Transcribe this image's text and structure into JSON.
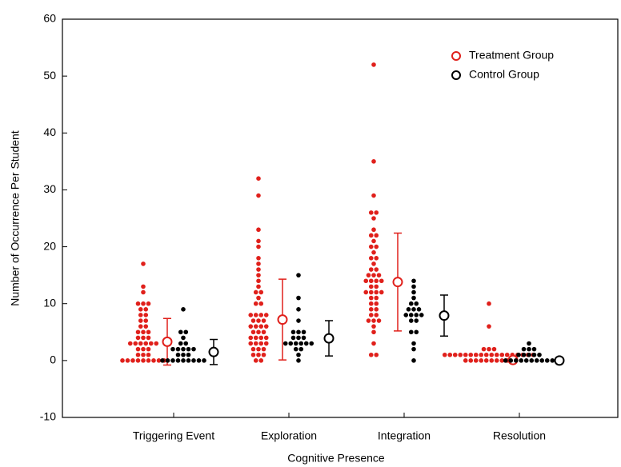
{
  "chart_data": {
    "type": "dot",
    "xlabel": "Cognitive Presence",
    "ylabel": "Number of Occurrence Per Student",
    "categories": [
      "Triggering Event",
      "Exploration",
      "Integration",
      "Resolution"
    ],
    "ylim": [
      -10,
      60
    ],
    "yticks": [
      -10,
      0,
      10,
      20,
      30,
      40,
      50,
      60
    ],
    "legend": "upper right",
    "series": [
      {
        "name": "Treatment Group",
        "color": "#e0201b",
        "means": [
          3.3,
          7.2,
          13.8,
          0.1
        ],
        "errors": [
          4.1,
          7.1,
          8.6,
          0.3
        ],
        "points": [
          [
            0,
            0,
            0,
            0,
            0,
            0,
            0,
            0,
            0,
            1,
            1,
            1,
            2,
            2,
            2,
            3,
            3,
            3,
            3,
            3,
            3,
            4,
            4,
            4,
            5,
            5,
            5,
            6,
            6,
            7,
            7,
            8,
            8,
            9,
            9,
            10,
            10,
            10,
            12,
            13,
            17
          ],
          [
            0,
            0,
            1,
            1,
            1,
            2,
            2,
            2,
            3,
            3,
            3,
            3,
            4,
            4,
            4,
            4,
            5,
            5,
            5,
            6,
            6,
            6,
            6,
            7,
            7,
            7,
            8,
            8,
            8,
            8,
            10,
            10,
            11,
            12,
            12,
            13,
            14,
            15,
            16,
            17,
            18,
            20,
            21,
            23,
            29,
            32
          ],
          [
            1,
            1,
            3,
            5,
            6,
            7,
            7,
            7,
            8,
            8,
            9,
            9,
            10,
            10,
            11,
            11,
            12,
            12,
            12,
            12,
            13,
            13,
            14,
            14,
            14,
            14,
            15,
            15,
            15,
            16,
            16,
            17,
            18,
            18,
            19,
            20,
            20,
            21,
            22,
            22,
            23,
            25,
            26,
            26,
            29,
            35,
            52
          ],
          [
            0,
            0,
            0,
            0,
            0,
            0,
            0,
            0,
            0,
            0,
            1,
            1,
            1,
            1,
            1,
            1,
            1,
            1,
            1,
            1,
            1,
            1,
            1,
            1,
            1,
            1,
            1,
            1,
            2,
            2,
            2,
            6,
            10
          ]
        ]
      },
      {
        "name": "Control Group",
        "color": "#000000",
        "means": [
          1.5,
          3.9,
          7.9,
          0
        ],
        "errors": [
          2.2,
          3.1,
          3.6,
          0.2
        ],
        "points": [
          [
            0,
            0,
            0,
            0,
            0,
            0,
            0,
            0,
            0,
            1,
            1,
            1,
            2,
            2,
            2,
            2,
            2,
            3,
            3,
            4,
            5,
            5,
            9
          ],
          [
            0,
            1,
            2,
            2,
            3,
            3,
            3,
            3,
            3,
            3,
            4,
            4,
            4,
            5,
            5,
            5,
            7,
            9,
            11,
            15
          ],
          [
            0,
            2,
            3,
            5,
            5,
            7,
            7,
            8,
            8,
            8,
            8,
            9,
            9,
            9,
            10,
            10,
            11,
            12,
            13,
            14
          ],
          [
            0,
            0,
            0,
            0,
            0,
            0,
            0,
            0,
            0,
            0,
            1,
            1,
            1,
            1,
            1,
            2,
            2,
            2,
            3
          ]
        ]
      }
    ]
  }
}
